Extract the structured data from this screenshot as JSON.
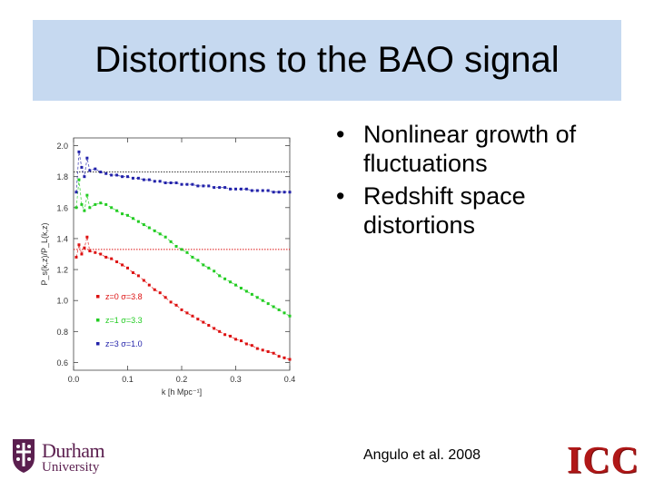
{
  "slide": {
    "title": "Distortions to the BAO signal",
    "bullets": [
      {
        "marker": "•",
        "lines": [
          "Nonlinear growth of",
          "fluctuations"
        ]
      },
      {
        "marker": "•",
        "lines": [
          "Redshift space",
          "distortions"
        ]
      }
    ],
    "citation": "Angulo et al. 2008",
    "logos": {
      "durham_name": "Durham",
      "durham_sub": "University",
      "icc_text": "ICC"
    },
    "colors": {
      "title_bg": "#c6d9f0",
      "red": "#dd1111",
      "green": "#22cc22",
      "blue": "#2222aa"
    }
  },
  "chart_data": {
    "type": "scatter",
    "xlabel": "k [h Mpc⁻¹]",
    "ylabel": "P_s(k,z)/P_L(k,z)",
    "xlim": [
      0.0,
      0.4
    ],
    "ylim": [
      0.55,
      2.05
    ],
    "xticks": [
      0.0,
      0.1,
      0.2,
      0.3,
      0.4
    ],
    "xtick_labels": [
      "0.0",
      "0.1",
      "0.2",
      "0.3",
      "0.4"
    ],
    "yticks": [
      0.6,
      0.8,
      1.0,
      1.2,
      1.4,
      1.6,
      1.8,
      2.0
    ],
    "ytick_labels": [
      "0.6",
      "0.8",
      "1.0",
      "1.2",
      "1.4",
      "1.6",
      "1.8",
      "2.0"
    ],
    "reference_lines": [
      {
        "y": 1.83,
        "color": "#3a3a3a"
      },
      {
        "y": 1.33,
        "color": "#dd1111"
      }
    ],
    "series": [
      {
        "name": "z=0  σ=3.8",
        "color": "#dd1111",
        "x": [
          0.005,
          0.01,
          0.015,
          0.02,
          0.025,
          0.03,
          0.04,
          0.05,
          0.06,
          0.07,
          0.08,
          0.09,
          0.1,
          0.11,
          0.12,
          0.13,
          0.14,
          0.15,
          0.16,
          0.17,
          0.18,
          0.19,
          0.2,
          0.21,
          0.22,
          0.23,
          0.24,
          0.25,
          0.26,
          0.27,
          0.28,
          0.29,
          0.3,
          0.31,
          0.32,
          0.33,
          0.34,
          0.35,
          0.36,
          0.37,
          0.38,
          0.39,
          0.4
        ],
        "y": [
          1.28,
          1.36,
          1.3,
          1.34,
          1.41,
          1.32,
          1.31,
          1.3,
          1.28,
          1.27,
          1.25,
          1.23,
          1.21,
          1.18,
          1.16,
          1.13,
          1.1,
          1.07,
          1.05,
          1.02,
          0.99,
          0.97,
          0.94,
          0.92,
          0.9,
          0.88,
          0.86,
          0.84,
          0.82,
          0.8,
          0.78,
          0.77,
          0.75,
          0.74,
          0.72,
          0.71,
          0.69,
          0.68,
          0.67,
          0.66,
          0.64,
          0.63,
          0.62
        ]
      },
      {
        "name": "z=1  σ=3.3",
        "color": "#22cc22",
        "x": [
          0.005,
          0.01,
          0.015,
          0.02,
          0.025,
          0.03,
          0.04,
          0.05,
          0.06,
          0.07,
          0.08,
          0.09,
          0.1,
          0.11,
          0.12,
          0.13,
          0.14,
          0.15,
          0.16,
          0.17,
          0.18,
          0.19,
          0.2,
          0.21,
          0.22,
          0.23,
          0.24,
          0.25,
          0.26,
          0.27,
          0.28,
          0.29,
          0.3,
          0.31,
          0.32,
          0.33,
          0.34,
          0.35,
          0.36,
          0.37,
          0.38,
          0.39,
          0.4
        ],
        "y": [
          1.6,
          1.78,
          1.62,
          1.58,
          1.68,
          1.6,
          1.62,
          1.63,
          1.62,
          1.6,
          1.58,
          1.56,
          1.55,
          1.53,
          1.51,
          1.49,
          1.47,
          1.45,
          1.43,
          1.41,
          1.38,
          1.35,
          1.33,
          1.31,
          1.28,
          1.26,
          1.23,
          1.21,
          1.19,
          1.16,
          1.14,
          1.12,
          1.1,
          1.08,
          1.06,
          1.04,
          1.02,
          1.0,
          0.98,
          0.96,
          0.94,
          0.92,
          0.9
        ]
      },
      {
        "name": "z=3  σ=1.0",
        "color": "#2222aa",
        "x": [
          0.005,
          0.01,
          0.015,
          0.02,
          0.025,
          0.03,
          0.04,
          0.05,
          0.06,
          0.07,
          0.08,
          0.09,
          0.1,
          0.11,
          0.12,
          0.13,
          0.14,
          0.15,
          0.16,
          0.17,
          0.18,
          0.19,
          0.2,
          0.21,
          0.22,
          0.23,
          0.24,
          0.25,
          0.26,
          0.27,
          0.28,
          0.29,
          0.3,
          0.31,
          0.32,
          0.33,
          0.34,
          0.35,
          0.36,
          0.37,
          0.38,
          0.39,
          0.4
        ],
        "y": [
          1.7,
          1.96,
          1.86,
          1.8,
          1.92,
          1.84,
          1.85,
          1.83,
          1.82,
          1.81,
          1.81,
          1.8,
          1.8,
          1.79,
          1.79,
          1.78,
          1.78,
          1.77,
          1.77,
          1.76,
          1.76,
          1.76,
          1.75,
          1.75,
          1.75,
          1.74,
          1.74,
          1.74,
          1.73,
          1.73,
          1.73,
          1.72,
          1.72,
          1.72,
          1.72,
          1.71,
          1.71,
          1.71,
          1.71,
          1.7,
          1.7,
          1.7,
          1.7
        ]
      }
    ],
    "legend_position": "lower-left"
  }
}
